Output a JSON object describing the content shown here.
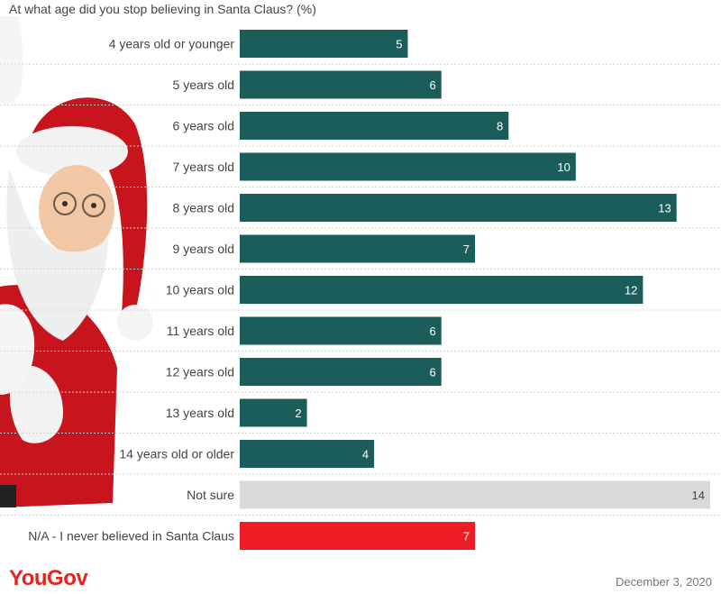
{
  "chart_data": {
    "type": "bar",
    "orientation": "horizontal",
    "title": "At what age did you stop believing in Santa Claus? (%)",
    "categories": [
      "4 years old or younger",
      "5 years old",
      "6 years old",
      "7 years old",
      "8 years old",
      "9 years old",
      "10 years old",
      "11 years old",
      "12 years old",
      "13 years old",
      "14 years old or older",
      "Not sure",
      "N/A - I never believed in Santa Claus"
    ],
    "values": [
      5,
      6,
      8,
      10,
      13,
      7,
      12,
      6,
      6,
      2,
      4,
      14,
      7
    ],
    "bar_colors": [
      "#1b5d5a",
      "#1b5d5a",
      "#1b5d5a",
      "#1b5d5a",
      "#1b5d5a",
      "#1b5d5a",
      "#1b5d5a",
      "#1b5d5a",
      "#1b5d5a",
      "#1b5d5a",
      "#1b5d5a",
      "#d9d9d9",
      "#ee1c25"
    ],
    "value_label_colors": [
      "#ffffff",
      "#ffffff",
      "#ffffff",
      "#ffffff",
      "#ffffff",
      "#ffffff",
      "#ffffff",
      "#ffffff",
      "#ffffff",
      "#ffffff",
      "#ffffff",
      "#444444",
      "#ffffff"
    ],
    "xlim": [
      0,
      14
    ],
    "grid": false
  },
  "footer": {
    "brand": "YouGov",
    "date": "December 3, 2020"
  },
  "colors": {
    "primary_bar": "#1b5d5a",
    "not_sure_bar": "#d9d9d9",
    "never_believed_bar": "#ee1c25",
    "brand": "#e5241f"
  },
  "illustration": {
    "icon": "santa-claus-illustration"
  }
}
